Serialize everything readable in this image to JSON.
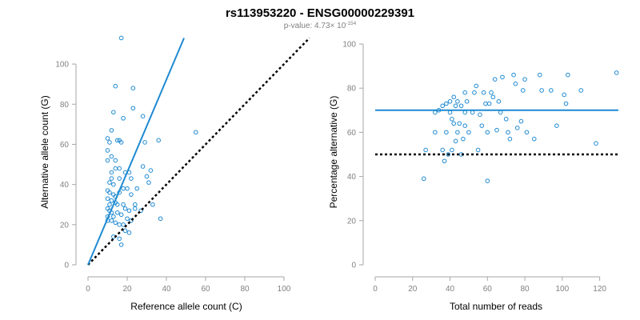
{
  "figure": {
    "title": "rs113953220 - ENSG00000229391",
    "pvalue_prefix": "p-value: 4.73",
    "pvalue_times": "× 10",
    "pvalue_exponent": "-154"
  },
  "colors": {
    "points": "#1f8ad2",
    "fit_line": "#1f8ad2",
    "reference_line": "#000000",
    "axis": "#a6a6a6"
  },
  "chart_data": [
    {
      "type": "scatter",
      "title": "",
      "xlabel": "Reference allele count (C)",
      "ylabel": "Alternative allele count (G)",
      "xlim": [
        0,
        100
      ],
      "ylim": [
        0,
        110
      ],
      "xticks": [
        0,
        20,
        40,
        60,
        80,
        100
      ],
      "yticks": [
        0,
        20,
        40,
        60,
        80,
        100
      ],
      "grid": false,
      "fit_line": {
        "from": [
          0,
          0
        ],
        "to": [
          49,
          113
        ],
        "style": "solid"
      },
      "reference_line": {
        "from": [
          0,
          0
        ],
        "to": [
          113,
          113
        ],
        "style": "dotted"
      },
      "points": [
        [
          17,
          113
        ],
        [
          14,
          89
        ],
        [
          23,
          88
        ],
        [
          13,
          76
        ],
        [
          23,
          78
        ],
        [
          18,
          73
        ],
        [
          28,
          74
        ],
        [
          12,
          67
        ],
        [
          16,
          62
        ],
        [
          10,
          63
        ],
        [
          15,
          62
        ],
        [
          11,
          61
        ],
        [
          17,
          61
        ],
        [
          29,
          61
        ],
        [
          36,
          62
        ],
        [
          55,
          66
        ],
        [
          10,
          57
        ],
        [
          12,
          54
        ],
        [
          14,
          52
        ],
        [
          10,
          52
        ],
        [
          14,
          48
        ],
        [
          16,
          48
        ],
        [
          12,
          46
        ],
        [
          19,
          46
        ],
        [
          21,
          46
        ],
        [
          28,
          49
        ],
        [
          32,
          47
        ],
        [
          12,
          43
        ],
        [
          16,
          43
        ],
        [
          22,
          43
        ],
        [
          30,
          44
        ],
        [
          31,
          41
        ],
        [
          11,
          41
        ],
        [
          10,
          37
        ],
        [
          13,
          35
        ],
        [
          14,
          34
        ],
        [
          16,
          36
        ],
        [
          18,
          38
        ],
        [
          20,
          38
        ],
        [
          25,
          38
        ],
        [
          10,
          33
        ],
        [
          12,
          32
        ],
        [
          14,
          31
        ],
        [
          11,
          30
        ],
        [
          15,
          30
        ],
        [
          18,
          30
        ],
        [
          19,
          28
        ],
        [
          22,
          35
        ],
        [
          24,
          30
        ],
        [
          27,
          27
        ],
        [
          10,
          28
        ],
        [
          11,
          27
        ],
        [
          12,
          26
        ],
        [
          13,
          24
        ],
        [
          10,
          24
        ],
        [
          15,
          26
        ],
        [
          17,
          25
        ],
        [
          20,
          23
        ],
        [
          22,
          22
        ],
        [
          33,
          30
        ],
        [
          37,
          23
        ],
        [
          10,
          22
        ],
        [
          12,
          22
        ],
        [
          14,
          21
        ],
        [
          16,
          20
        ],
        [
          18,
          20
        ],
        [
          21,
          16
        ],
        [
          13,
          14
        ],
        [
          16,
          13
        ],
        [
          19,
          17
        ],
        [
          17,
          10
        ],
        [
          11,
          36
        ],
        [
          13,
          40
        ],
        [
          21,
          27
        ],
        [
          24,
          28
        ]
      ]
    },
    {
      "type": "scatter",
      "title": "",
      "xlabel": "Total number of reads",
      "ylabel": "Percentage alternative (G)",
      "xlim": [
        0,
        130
      ],
      "ylim": [
        0,
        100
      ],
      "xticks": [
        0,
        20,
        40,
        60,
        80,
        100,
        120
      ],
      "yticks": [
        0,
        20,
        40,
        60,
        80,
        100
      ],
      "grid": false,
      "fit_line": {
        "y": 70,
        "style": "solid"
      },
      "reference_line": {
        "y": 50,
        "style": "dotted"
      },
      "points": [
        [
          26,
          39
        ],
        [
          60,
          38
        ],
        [
          27,
          52
        ],
        [
          32,
          60
        ],
        [
          32,
          69
        ],
        [
          34,
          70
        ],
        [
          36,
          72
        ],
        [
          36,
          52
        ],
        [
          37,
          47
        ],
        [
          38,
          73
        ],
        [
          38,
          60
        ],
        [
          39,
          50
        ],
        [
          40,
          74
        ],
        [
          40,
          69
        ],
        [
          41,
          66
        ],
        [
          41,
          52
        ],
        [
          42,
          76
        ],
        [
          42,
          64
        ],
        [
          43,
          72
        ],
        [
          43,
          56
        ],
        [
          44,
          74
        ],
        [
          44,
          60
        ],
        [
          45,
          64
        ],
        [
          46,
          72
        ],
        [
          46,
          50
        ],
        [
          47,
          57
        ],
        [
          48,
          78
        ],
        [
          48,
          69
        ],
        [
          48,
          63
        ],
        [
          49,
          74
        ],
        [
          50,
          60
        ],
        [
          52,
          69
        ],
        [
          53,
          78
        ],
        [
          54,
          81
        ],
        [
          55,
          52
        ],
        [
          56,
          68
        ],
        [
          57,
          63
        ],
        [
          58,
          78
        ],
        [
          59,
          73
        ],
        [
          60,
          60
        ],
        [
          61,
          73
        ],
        [
          62,
          78
        ],
        [
          63,
          76
        ],
        [
          64,
          84
        ],
        [
          65,
          61
        ],
        [
          66,
          74
        ],
        [
          67,
          69
        ],
        [
          68,
          85
        ],
        [
          70,
          66
        ],
        [
          71,
          60
        ],
        [
          72,
          57
        ],
        [
          74,
          86
        ],
        [
          75,
          82
        ],
        [
          76,
          62
        ],
        [
          78,
          65
        ],
        [
          79,
          79
        ],
        [
          80,
          84
        ],
        [
          81,
          60
        ],
        [
          85,
          57
        ],
        [
          88,
          86
        ],
        [
          89,
          79
        ],
        [
          94,
          79
        ],
        [
          97,
          63
        ],
        [
          101,
          77
        ],
        [
          102,
          73
        ],
        [
          103,
          86
        ],
        [
          110,
          79
        ],
        [
          118,
          55
        ],
        [
          129,
          87
        ]
      ]
    }
  ]
}
